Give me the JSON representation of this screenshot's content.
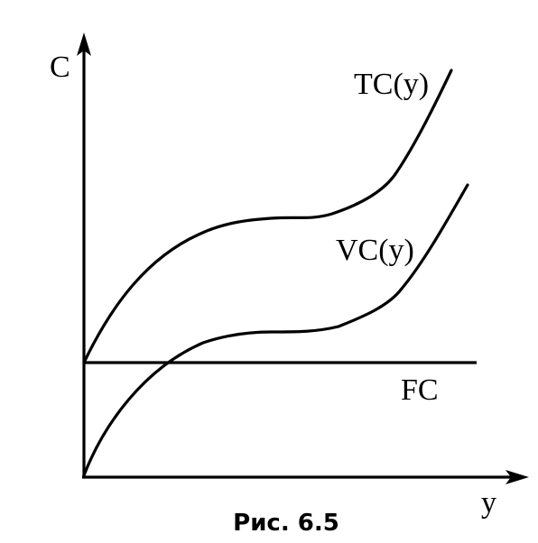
{
  "figure": {
    "y_axis_label": "C",
    "x_axis_label": "y",
    "caption": "Рис. 6.5",
    "colors": {
      "ink": "#000000",
      "background": "#ffffff"
    }
  },
  "curves": {
    "tc": {
      "label": "TC(y)"
    },
    "vc": {
      "label": "VC(y)"
    },
    "fc": {
      "label": "FC"
    }
  }
}
